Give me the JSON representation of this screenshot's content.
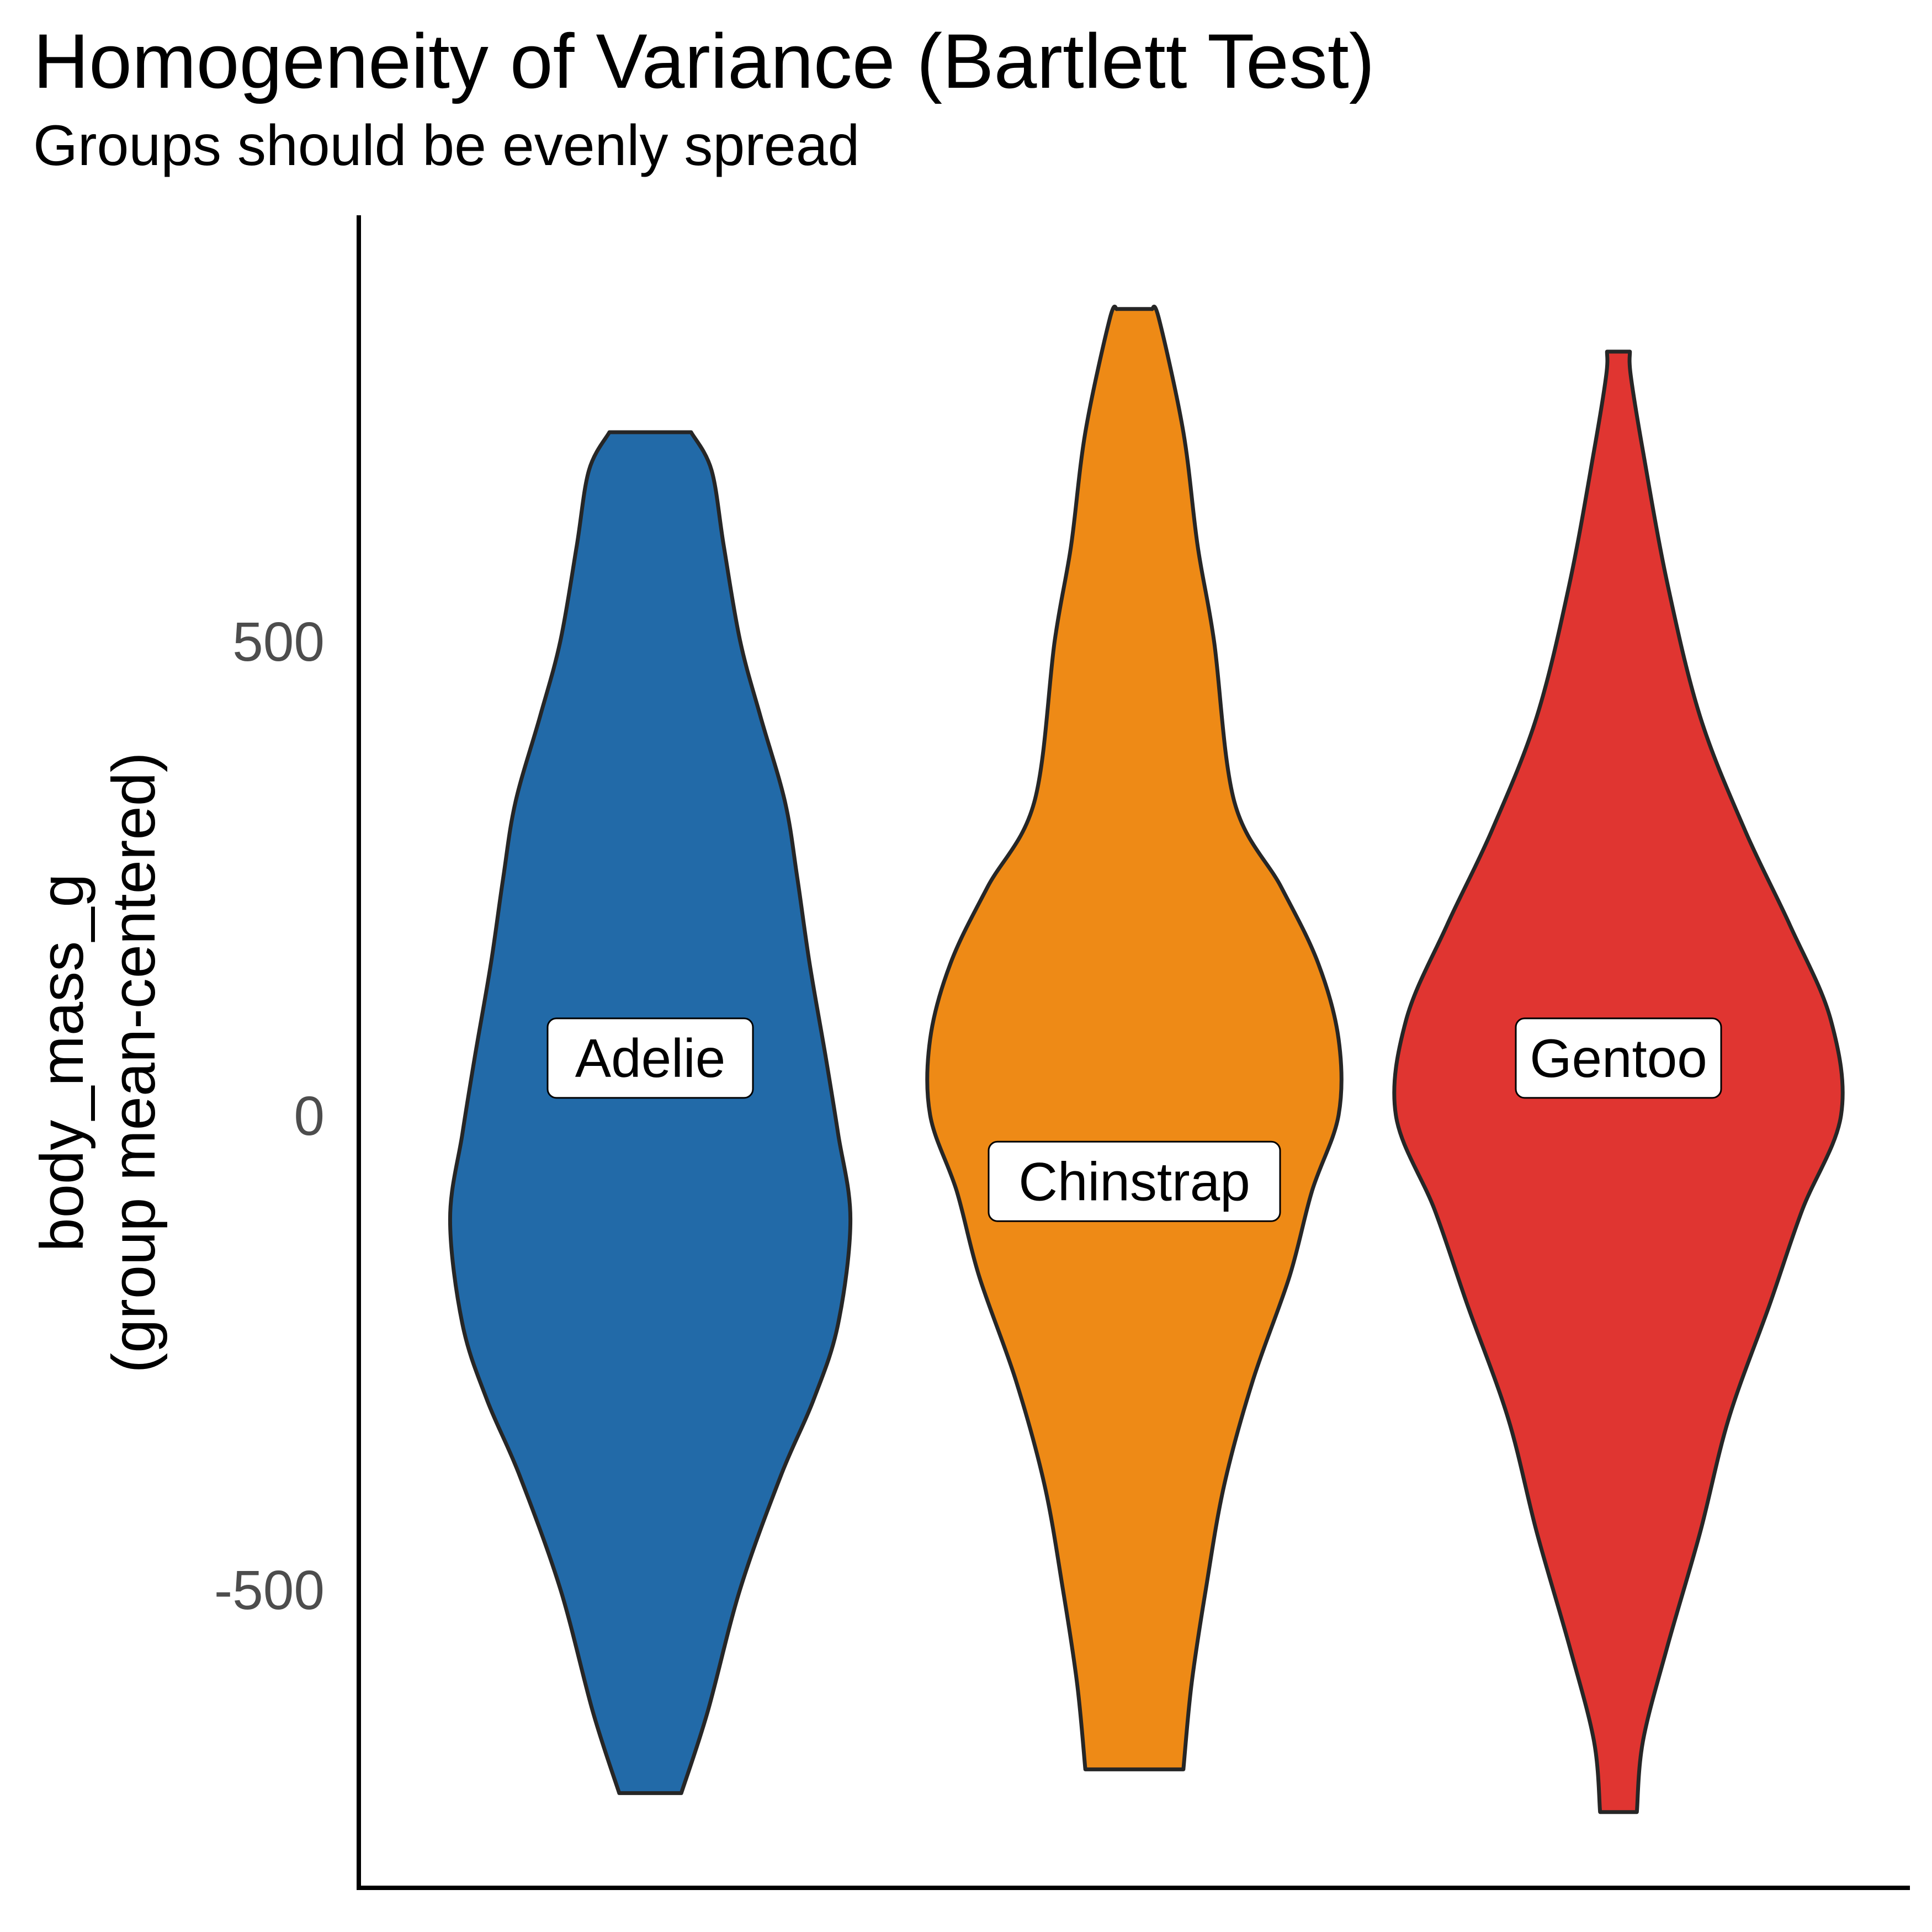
{
  "chart_data": {
    "type": "violin",
    "title": "Homogeneity of Variance (Bartlett Test)",
    "subtitle": "Groups should be evenly spread",
    "ylabel_lines": [
      "body_mass_g",
      "(group mean-centered)"
    ],
    "xlabel": "",
    "yticks": [
      -500,
      0,
      500
    ],
    "ylim": [
      -840,
      940
    ],
    "grid": false,
    "legend": "none",
    "groups": [
      {
        "label": "Adelie",
        "color": "#226AA8",
        "label_y": 60,
        "profile": [
          [
            -715,
            0.076
          ],
          [
            -630,
            0.14
          ],
          [
            -500,
            0.22
          ],
          [
            -380,
            0.32
          ],
          [
            -300,
            0.4
          ],
          [
            -220,
            0.46
          ],
          [
            -110,
            0.49
          ],
          [
            -20,
            0.46
          ],
          [
            60,
            0.43
          ],
          [
            160,
            0.39
          ],
          [
            250,
            0.36
          ],
          [
            330,
            0.33
          ],
          [
            420,
            0.27
          ],
          [
            500,
            0.22
          ],
          [
            600,
            0.18
          ],
          [
            680,
            0.15
          ],
          [
            720,
            0.1
          ]
        ]
      },
      {
        "label": "Chinstrap",
        "color": "#EE8A16",
        "label_y": -70,
        "profile": [
          [
            -690,
            0.12
          ],
          [
            -600,
            0.14
          ],
          [
            -500,
            0.175
          ],
          [
            -390,
            0.22
          ],
          [
            -280,
            0.29
          ],
          [
            -170,
            0.38
          ],
          [
            -80,
            0.435
          ],
          [
            0,
            0.5
          ],
          [
            80,
            0.5
          ],
          [
            160,
            0.45
          ],
          [
            240,
            0.36
          ],
          [
            330,
            0.245
          ],
          [
            500,
            0.195
          ],
          [
            600,
            0.155
          ],
          [
            720,
            0.12
          ],
          [
            840,
            0.06
          ],
          [
            850,
            0.043
          ]
        ]
      },
      {
        "label": "Gentoo",
        "color": "#E03531",
        "label_y": 60,
        "profile": [
          [
            -735,
            0.045
          ],
          [
            -660,
            0.06
          ],
          [
            -560,
            0.12
          ],
          [
            -440,
            0.2
          ],
          [
            -320,
            0.27
          ],
          [
            -200,
            0.37
          ],
          [
            -100,
            0.45
          ],
          [
            0,
            0.545
          ],
          [
            100,
            0.52
          ],
          [
            200,
            0.42
          ],
          [
            300,
            0.31
          ],
          [
            420,
            0.2
          ],
          [
            560,
            0.12
          ],
          [
            700,
            0.06
          ],
          [
            780,
            0.03
          ],
          [
            805,
            0.028
          ]
        ]
      }
    ]
  }
}
